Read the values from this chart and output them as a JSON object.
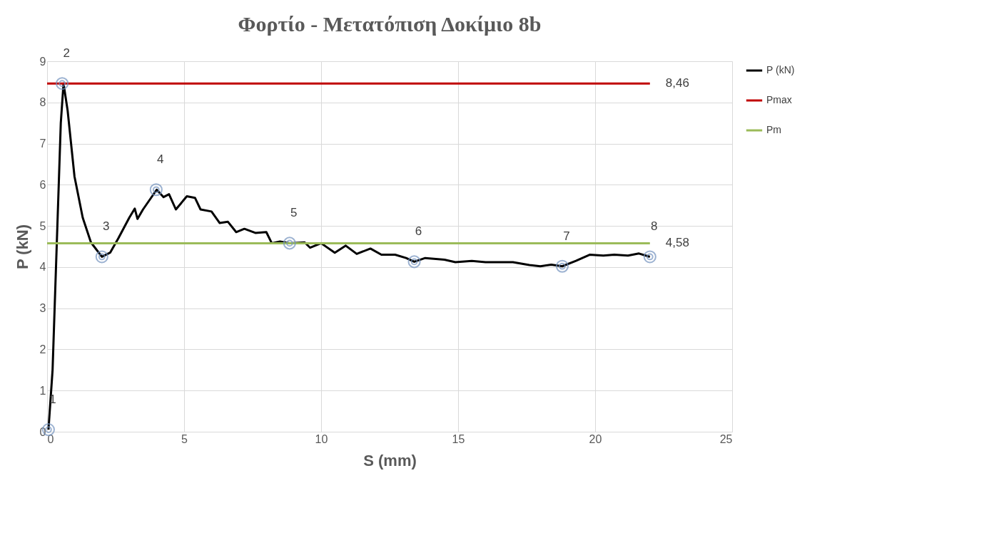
{
  "chart_data": {
    "type": "line",
    "title": "Φορτίο - Μετατόπιση Δοκίμιο 8b",
    "xlabel": "S (mm)",
    "ylabel": "P (kN)",
    "xlim": [
      0,
      25
    ],
    "xticks": [
      0,
      5,
      10,
      15,
      20,
      25
    ],
    "ylim": [
      0,
      9
    ],
    "yticks": [
      0,
      1,
      2,
      3,
      4,
      5,
      6,
      7,
      8,
      9
    ],
    "grid": true,
    "legend": "right",
    "marker": "none",
    "line_style": "solid",
    "series": [
      {
        "name": "P (kN)",
        "color": "#000000",
        "x": [
          0.05,
          0.2,
          0.35,
          0.5,
          0.6,
          0.75,
          1.0,
          1.3,
          1.6,
          2.0,
          2.3,
          2.6,
          3.0,
          3.2,
          3.3,
          3.5,
          4.0,
          4.25,
          4.45,
          4.7,
          5.1,
          5.4,
          5.6,
          6.0,
          6.3,
          6.6,
          6.9,
          7.2,
          7.6,
          8.0,
          8.2,
          8.5,
          8.85,
          9.4,
          9.6,
          10.0,
          10.5,
          10.9,
          11.3,
          11.8,
          12.2,
          12.7,
          13.1,
          13.4,
          13.8,
          14.5,
          14.9,
          15.5,
          16.0,
          17.0,
          17.6,
          18.0,
          18.4,
          18.8,
          19.3,
          19.8,
          20.3,
          20.7,
          21.2,
          21.6,
          22.0
        ],
        "values": [
          0.05,
          1.5,
          4.5,
          7.5,
          8.46,
          7.8,
          6.2,
          5.2,
          4.6,
          4.25,
          4.35,
          4.7,
          5.2,
          5.42,
          5.17,
          5.4,
          5.88,
          5.7,
          5.77,
          5.4,
          5.72,
          5.68,
          5.4,
          5.35,
          5.07,
          5.1,
          4.85,
          4.93,
          4.83,
          4.85,
          4.58,
          4.62,
          4.58,
          4.6,
          4.47,
          4.58,
          4.35,
          4.52,
          4.32,
          4.45,
          4.3,
          4.3,
          4.22,
          4.13,
          4.22,
          4.18,
          4.12,
          4.15,
          4.12,
          4.12,
          4.05,
          4.02,
          4.06,
          4.02,
          4.15,
          4.3,
          4.28,
          4.3,
          4.28,
          4.33,
          4.25
        ]
      },
      {
        "name": "Pmax",
        "color": "#c00000",
        "x": [
          0,
          22
        ],
        "values": [
          8.46,
          8.46
        ],
        "value_labels": [
          null,
          "8,46"
        ]
      },
      {
        "name": "Pm",
        "color": "#9bbb59",
        "x": [
          0,
          22
        ],
        "values": [
          4.58,
          4.58
        ],
        "value_labels": [
          null,
          "4,58"
        ]
      }
    ],
    "annotations": [
      {
        "text": "1",
        "x": 0.05,
        "y": 0.05
      },
      {
        "text": "2",
        "x": 0.55,
        "y": 8.46
      },
      {
        "text": "3",
        "x": 2.0,
        "y": 4.25
      },
      {
        "text": "4",
        "x": 3.98,
        "y": 5.88
      },
      {
        "text": "5",
        "x": 8.85,
        "y": 4.58
      },
      {
        "text": "6",
        "x": 13.4,
        "y": 4.13
      },
      {
        "text": "7",
        "x": 18.8,
        "y": 4.02
      },
      {
        "text": "8",
        "x": 22.0,
        "y": 4.25
      }
    ]
  }
}
